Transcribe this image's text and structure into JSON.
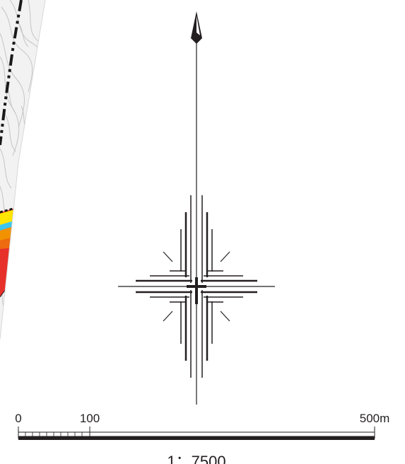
{
  "map": {
    "north_arrow": {
      "icon": "north-arrow-icon"
    },
    "compass_rose": {
      "icon": "compass-rose-icon"
    },
    "scale_bar": {
      "labels": [
        "0",
        "100",
        "500m"
      ],
      "ratio_text": "1：7500",
      "units": "m"
    },
    "colors": {
      "ink": "#231f20",
      "area_red": "#e8302a",
      "area_orange": "#f29200",
      "area_yellow": "#ffe500",
      "water_cyan": "#3cc6ee",
      "boundary": "#1a1a1a",
      "contour": "#c8c8c8",
      "terrain": "#ededed"
    }
  }
}
